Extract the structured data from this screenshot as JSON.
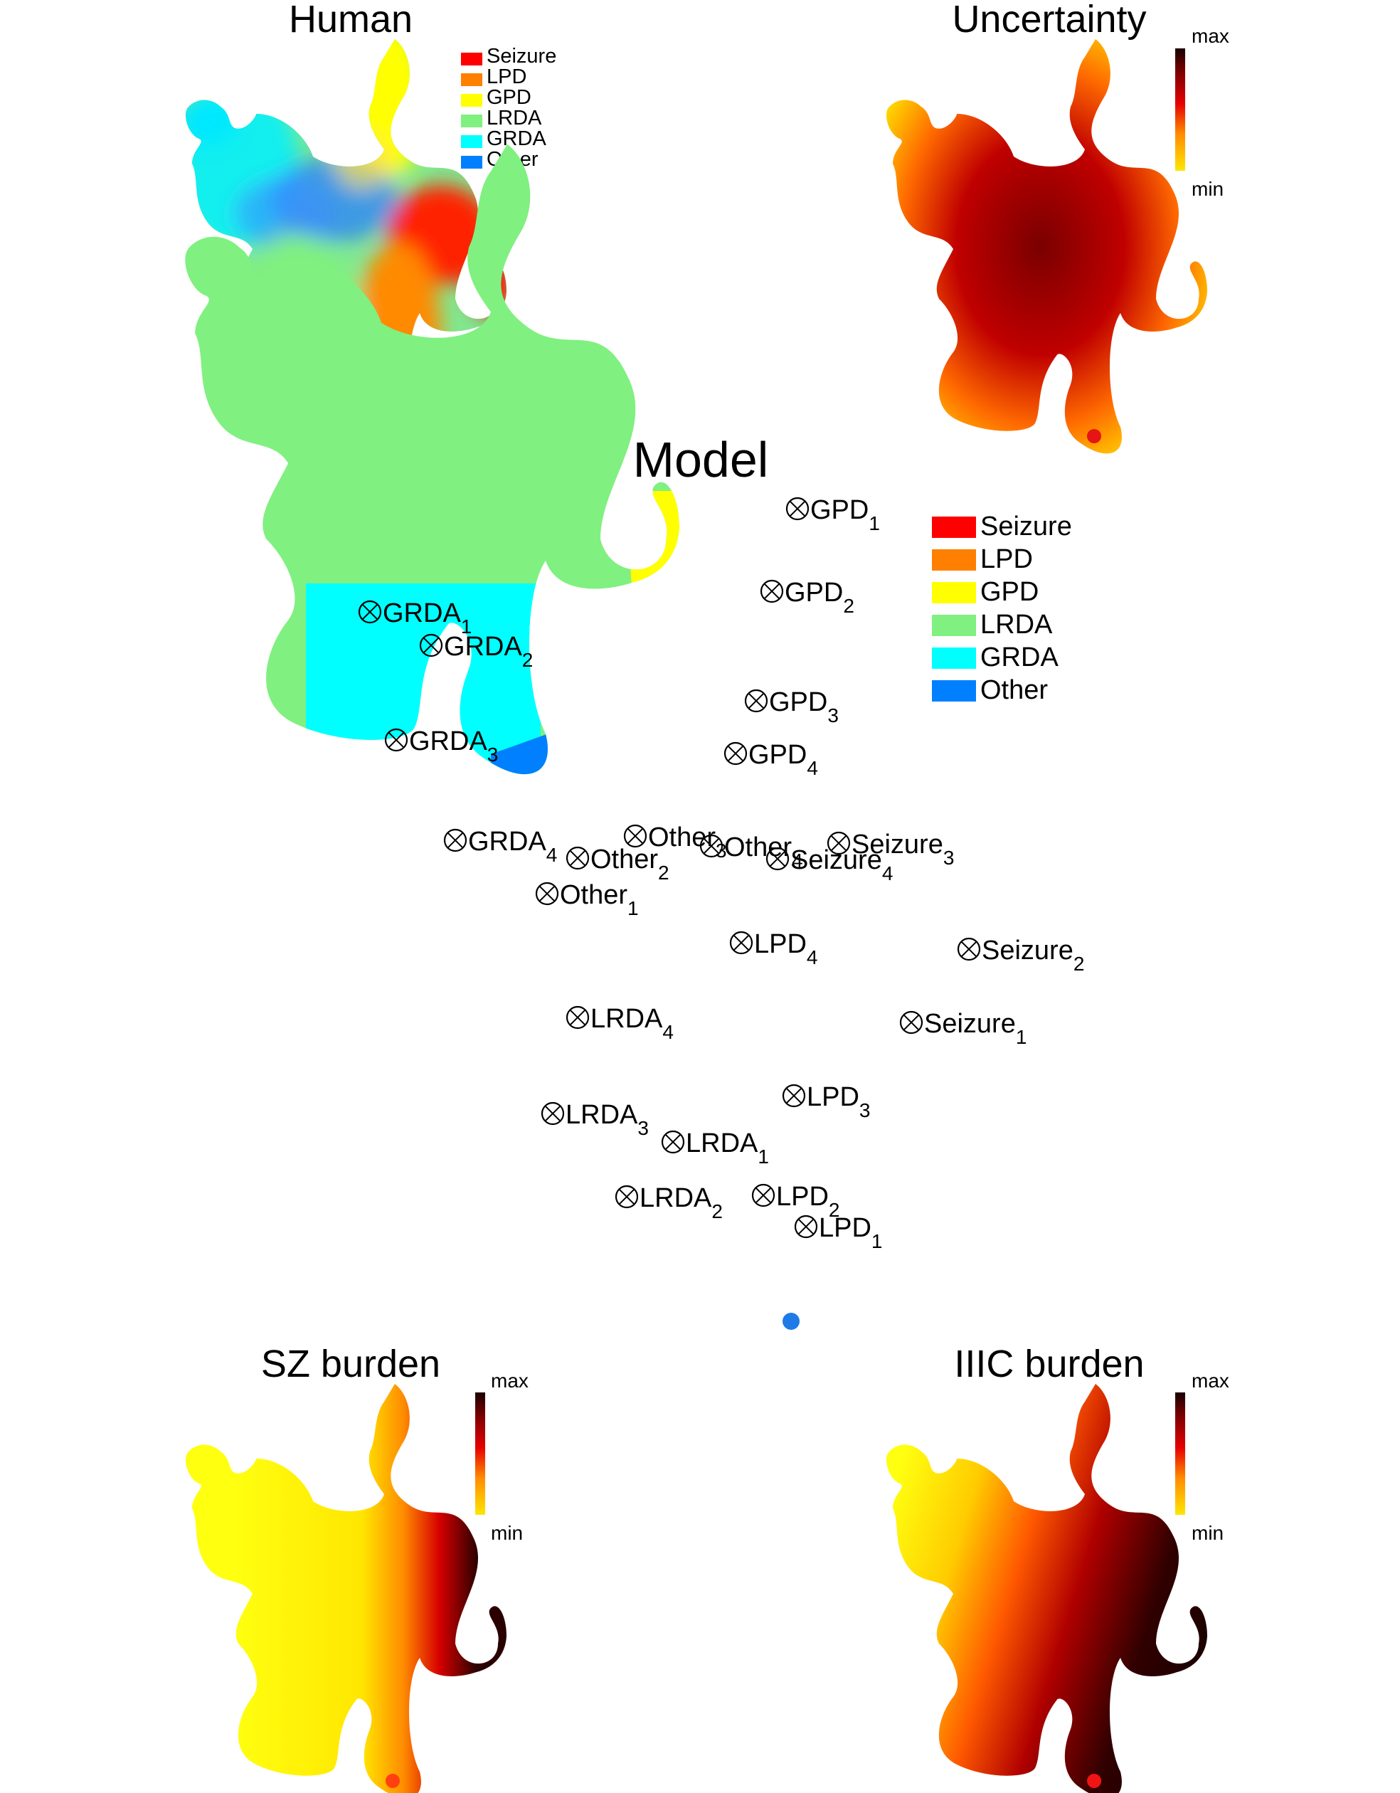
{
  "titles": {
    "human": "Human",
    "uncertainty": "Uncertainty",
    "model": "Model",
    "sz_burden": "SZ burden",
    "iiic_burden": "IIIC burden"
  },
  "legend": {
    "items": [
      {
        "label": "Seizure",
        "color": "#ff0000"
      },
      {
        "label": "LPD",
        "color": "#ff8000"
      },
      {
        "label": "GPD",
        "color": "#ffff00"
      },
      {
        "label": "LRDA",
        "color": "#80f080"
      },
      {
        "label": "GRDA",
        "color": "#00ffff"
      },
      {
        "label": "Other",
        "color": "#0080ff"
      }
    ]
  },
  "colorbar": {
    "max_label": "max",
    "min_label": "min",
    "colors": [
      "#ffe600",
      "#ff8c00",
      "#e60000",
      "#800000",
      "#1a0000"
    ]
  },
  "markers": [
    {
      "base": "GPD",
      "sub": "1"
    },
    {
      "base": "GPD",
      "sub": "2"
    },
    {
      "base": "GPD",
      "sub": "3"
    },
    {
      "base": "GPD",
      "sub": "4"
    },
    {
      "base": "GRDA",
      "sub": "1"
    },
    {
      "base": "GRDA",
      "sub": "2"
    },
    {
      "base": "GRDA",
      "sub": "3"
    },
    {
      "base": "GRDA",
      "sub": "4"
    },
    {
      "base": "Other",
      "sub": "1"
    },
    {
      "base": "Other",
      "sub": "2"
    },
    {
      "base": "Other",
      "sub": "3"
    },
    {
      "base": "Other",
      "sub": "4"
    },
    {
      "base": "Seizure",
      "sub": "1"
    },
    {
      "base": "Seizure",
      "sub": "2"
    },
    {
      "base": "Seizure",
      "sub": "3"
    },
    {
      "base": "Seizure",
      "sub": "4"
    },
    {
      "base": "LPD",
      "sub": "1"
    },
    {
      "base": "LPD",
      "sub": "2"
    },
    {
      "base": "LPD",
      "sub": "3"
    },
    {
      "base": "LPD",
      "sub": "4"
    },
    {
      "base": "LRDA",
      "sub": "1"
    },
    {
      "base": "LRDA",
      "sub": "2"
    },
    {
      "base": "LRDA",
      "sub": "3"
    },
    {
      "base": "LRDA",
      "sub": "4"
    }
  ],
  "dot_colors": {
    "human": "#1e7ae6",
    "uncertainty": "#e61414",
    "model": "#1e7ae6",
    "sz_burden": "#ff4010",
    "iiic_burden": "#f01414"
  }
}
